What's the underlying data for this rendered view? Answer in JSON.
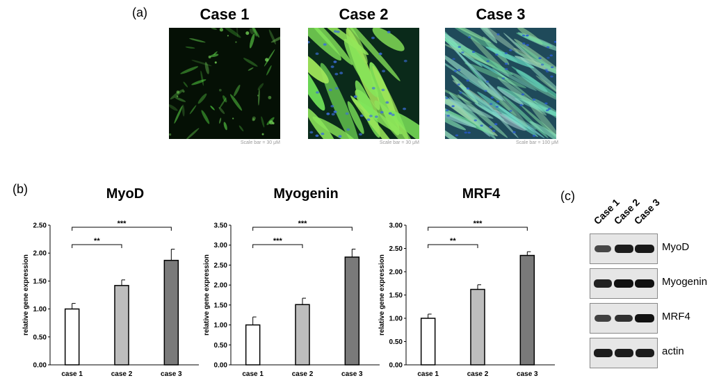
{
  "panel_a": {
    "letter": "(a)",
    "cases": [
      {
        "title": "Case 1",
        "scale": "Scale bar = 30 μM",
        "style": "sparse-green"
      },
      {
        "title": "Case 2",
        "scale": "Scale bar = 30 μM",
        "style": "bright-green-nuclei"
      },
      {
        "title": "Case 3",
        "scale": "Scale bar = 100 μM",
        "style": "dense-teal-fibers"
      }
    ]
  },
  "panel_b": {
    "letter": "(b)"
  },
  "chart_data": [
    {
      "type": "bar",
      "title": "MyoD",
      "categories": [
        "case 1",
        "case 2",
        "case 3"
      ],
      "values": [
        1.0,
        1.42,
        1.87
      ],
      "errors": [
        0.1,
        0.1,
        0.2
      ],
      "ylabel": "relative gene expression",
      "ylim": [
        0,
        2.5
      ],
      "yticks": [
        "0.00",
        "0.50",
        "1.00",
        "1.50",
        "2.00",
        "2.50"
      ],
      "bar_colors": [
        "#ffffff",
        "#bdbdbd",
        "#7a7a7a"
      ],
      "significance": [
        {
          "from": 0,
          "to": 1,
          "label": "**"
        },
        {
          "from": 0,
          "to": 2,
          "label": "***"
        }
      ]
    },
    {
      "type": "bar",
      "title": "Myogenin",
      "categories": [
        "case 1",
        "case 2",
        "case 3"
      ],
      "values": [
        1.0,
        1.51,
        2.7
      ],
      "errors": [
        0.2,
        0.16,
        0.2
      ],
      "ylabel": "relative gene expression",
      "ylim": [
        0,
        3.5
      ],
      "yticks": [
        "0.00",
        "0.50",
        "1.00",
        "1.50",
        "2.00",
        "2.50",
        "3.00",
        "3.50"
      ],
      "bar_colors": [
        "#ffffff",
        "#bdbdbd",
        "#7a7a7a"
      ],
      "significance": [
        {
          "from": 0,
          "to": 1,
          "label": "***"
        },
        {
          "from": 0,
          "to": 2,
          "label": "***"
        }
      ]
    },
    {
      "type": "bar",
      "title": "MRF4",
      "categories": [
        "case 1",
        "case 2",
        "case 3"
      ],
      "values": [
        1.0,
        1.62,
        2.35
      ],
      "errors": [
        0.09,
        0.1,
        0.08
      ],
      "ylabel": "relative gene expression",
      "ylim": [
        0,
        3.0
      ],
      "yticks": [
        "0.00",
        "0.50",
        "1.00",
        "1.50",
        "2.00",
        "2.50",
        "3.00"
      ],
      "bar_colors": [
        "#ffffff",
        "#bdbdbd",
        "#7a7a7a"
      ],
      "significance": [
        {
          "from": 0,
          "to": 1,
          "label": "**"
        },
        {
          "from": 0,
          "to": 2,
          "label": "***"
        }
      ]
    }
  ],
  "panel_c": {
    "letter": "(c)",
    "lanes": [
      "Case 1",
      "Case 2",
      "Case 3"
    ],
    "blots": [
      {
        "label": "MyoD",
        "intensity": [
          0.55,
          0.9,
          0.95
        ]
      },
      {
        "label": "Myogenin",
        "intensity": [
          0.85,
          1.0,
          1.0
        ]
      },
      {
        "label": "MRF4",
        "intensity": [
          0.6,
          0.75,
          1.0
        ]
      },
      {
        "label": "actin",
        "intensity": [
          0.9,
          0.9,
          0.9
        ]
      }
    ]
  }
}
